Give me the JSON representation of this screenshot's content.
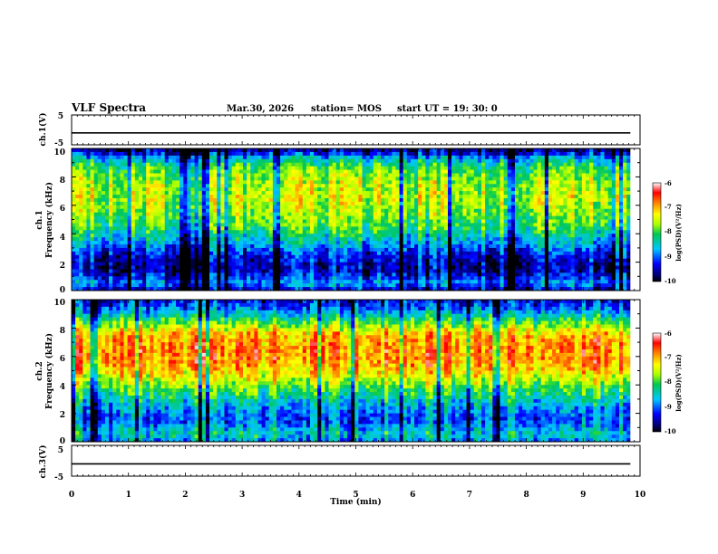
{
  "header": {
    "title": "VLF Spectra",
    "date": "Mar.30, 2026",
    "station": "station= MOS",
    "start": "start  UT  =   19: 30: 0"
  },
  "chart_data": [
    {
      "type": "line",
      "panel": "ch1-waveform",
      "ylabel": "ch.1(V)",
      "ylim": [
        -5,
        5
      ],
      "ytick_labels": [
        "5",
        "-5"
      ],
      "level_value": -1.0,
      "xlim": [
        0,
        10
      ]
    },
    {
      "type": "heatmap",
      "panel": "ch1-spectrogram",
      "ylabel_line1": "ch.1",
      "ylabel_line2": "Frequency (kHz)",
      "ylim": [
        0,
        10
      ],
      "ytick_labels": [
        "0",
        "2",
        "4",
        "6",
        "8",
        "10"
      ],
      "xlim": [
        0,
        9.83
      ],
      "colorbar": {
        "label": "log(PSD)(V²/Hz)",
        "range": [
          -10,
          -6
        ],
        "tick_labels": [
          "-6",
          "-7",
          "-8",
          "-9",
          "-10"
        ]
      },
      "intensity_profile": [
        {
          "f": 0.0,
          "v": -9.5
        },
        {
          "f": 0.5,
          "v": -8.8
        },
        {
          "f": 1.5,
          "v": -9.6
        },
        {
          "f": 2.5,
          "v": -9.3
        },
        {
          "f": 3.5,
          "v": -8.6
        },
        {
          "f": 4.5,
          "v": -8.0
        },
        {
          "f": 5.5,
          "v": -7.7
        },
        {
          "f": 6.5,
          "v": -7.5
        },
        {
          "f": 7.5,
          "v": -7.6
        },
        {
          "f": 8.5,
          "v": -7.9
        },
        {
          "f": 9.3,
          "v": -8.6
        },
        {
          "f": 9.8,
          "v": -9.6
        }
      ]
    },
    {
      "type": "heatmap",
      "panel": "ch2-spectrogram",
      "ylabel_line1": "ch.2",
      "ylabel_line2": "Frequency (kHz)",
      "ylim": [
        0,
        10
      ],
      "ytick_labels": [
        "0",
        "2",
        "4",
        "6",
        "8",
        "10"
      ],
      "xlim": [
        0,
        9.83
      ],
      "colorbar": {
        "label": "log(PSD)(V²/Hz)",
        "range": [
          -10,
          -6
        ],
        "tick_labels": [
          "-6",
          "-7",
          "-8",
          "-9",
          "-10"
        ]
      },
      "intensity_profile": [
        {
          "f": 0.0,
          "v": -8.9
        },
        {
          "f": 0.5,
          "v": -8.4
        },
        {
          "f": 1.5,
          "v": -9.1
        },
        {
          "f": 2.5,
          "v": -8.7
        },
        {
          "f": 3.5,
          "v": -8.1
        },
        {
          "f": 4.5,
          "v": -7.4
        },
        {
          "f": 5.5,
          "v": -6.9
        },
        {
          "f": 6.5,
          "v": -6.8
        },
        {
          "f": 7.5,
          "v": -7.0
        },
        {
          "f": 8.5,
          "v": -8.0
        },
        {
          "f": 9.3,
          "v": -8.9
        },
        {
          "f": 9.8,
          "v": -9.3
        }
      ]
    },
    {
      "type": "line",
      "panel": "ch3-waveform",
      "ylabel": "ch.3(V)",
      "ylim": [
        -5,
        5
      ],
      "ytick_labels": [
        "5",
        "-5"
      ],
      "level_value": -1.0,
      "xlim": [
        0,
        10
      ]
    }
  ],
  "x_axis": {
    "label": "Time (min)",
    "range": [
      0,
      10
    ],
    "tick_labels": [
      "0",
      "1",
      "2",
      "3",
      "4",
      "5",
      "6",
      "7",
      "8",
      "9",
      "10"
    ]
  }
}
